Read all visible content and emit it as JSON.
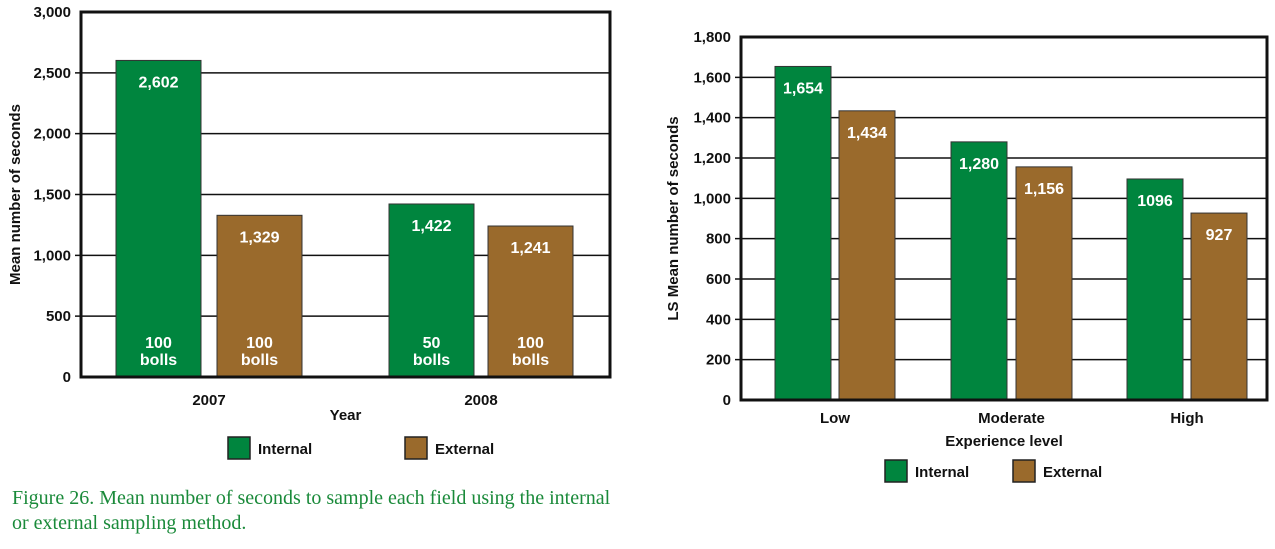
{
  "colors": {
    "internal": "#00853e",
    "external": "#9a6a2c"
  },
  "chart_data": [
    {
      "type": "bar",
      "categories": [
        "2007",
        "2008"
      ],
      "series": [
        {
          "name": "Internal",
          "values": [
            2602,
            1422
          ],
          "value_labels": [
            "2,602",
            "1,422"
          ],
          "inner_labels": [
            [
              "100",
              "bolls"
            ],
            [
              "50",
              "bolls"
            ]
          ]
        },
        {
          "name": "External",
          "values": [
            1329,
            1241
          ],
          "value_labels": [
            "1,329",
            "1,241"
          ],
          "inner_labels": [
            [
              "100",
              "bolls"
            ],
            [
              "100",
              "bolls"
            ]
          ]
        }
      ],
      "xlabel": "Year",
      "ylabel": "Mean number of seconds",
      "ylim": [
        0,
        3000
      ],
      "yticks": [
        "0",
        "500",
        "1,000",
        "1,500",
        "2,000",
        "2,500",
        "3,000"
      ],
      "grid": true,
      "legend": "bottom"
    },
    {
      "type": "bar",
      "categories": [
        "Low",
        "Moderate",
        "High"
      ],
      "series": [
        {
          "name": "Internal",
          "values": [
            1654,
            1280,
            1096
          ],
          "value_labels": [
            "1,654",
            "1,280",
            "1096"
          ]
        },
        {
          "name": "External",
          "values": [
            1434,
            1156,
            927
          ],
          "value_labels": [
            "1,434",
            "1,156",
            "927"
          ]
        }
      ],
      "xlabel": "Experience level",
      "ylabel": "LS Mean number of seconds",
      "ylim": [
        0,
        1800
      ],
      "yticks": [
        "0",
        "200",
        "400",
        "600",
        "800",
        "1,000",
        "1,200",
        "1,400",
        "1,600",
        "1,800"
      ],
      "grid": true,
      "legend": "bottom"
    }
  ],
  "caption": "Figure 26. Mean number of seconds to sample each field using the internal or external sampling method."
}
